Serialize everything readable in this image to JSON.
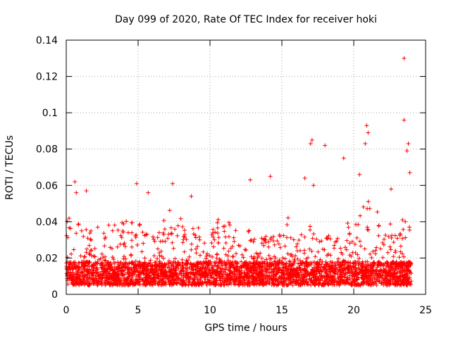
{
  "chart_data": {
    "type": "scatter",
    "title": "Day 099 of 2020, Rate Of TEC Index for receiver hoki",
    "xlabel": "GPS time / hours",
    "ylabel": "ROTI / TECUs",
    "xlim": [
      0,
      25
    ],
    "ylim": [
      0,
      0.14
    ],
    "x_ticks": [
      0,
      5,
      10,
      15,
      20,
      25
    ],
    "x_tick_labels": [
      "0",
      "5",
      "10",
      "15",
      "20",
      "25"
    ],
    "y_ticks": [
      0,
      0.02,
      0.04,
      0.06,
      0.08,
      0.1,
      0.12,
      0.14
    ],
    "y_tick_labels": [
      "0",
      "0.02",
      "0.04",
      "0.06",
      "0.08",
      "0.1",
      "0.12",
      "0.14"
    ],
    "grid": true,
    "marker": "+",
    "color": "#ff0000",
    "series": [
      {
        "name": "ROTI",
        "note": "dense scatter of ~24h observations; typical values 0.005-0.03 with outliers",
        "outliers": [
          [
            0.6,
            0.062
          ],
          [
            0.7,
            0.056
          ],
          [
            1.4,
            0.057
          ],
          [
            4.9,
            0.061
          ],
          [
            5.7,
            0.056
          ],
          [
            7.4,
            0.061
          ],
          [
            8.7,
            0.054
          ],
          [
            12.8,
            0.063
          ],
          [
            14.2,
            0.065
          ],
          [
            16.6,
            0.064
          ],
          [
            17.0,
            0.083
          ],
          [
            17.1,
            0.085
          ],
          [
            18.0,
            0.082
          ],
          [
            19.3,
            0.075
          ],
          [
            20.4,
            0.066
          ],
          [
            20.8,
            0.083
          ],
          [
            20.9,
            0.093
          ],
          [
            21.0,
            0.089
          ],
          [
            22.6,
            0.058
          ],
          [
            23.5,
            0.096
          ],
          [
            23.5,
            0.13
          ],
          [
            23.7,
            0.079
          ],
          [
            23.8,
            0.083
          ],
          [
            23.9,
            0.067
          ],
          [
            17.2,
            0.06
          ]
        ],
        "envelope": [
          [
            0.0,
            0.04
          ],
          [
            0.5,
            0.045
          ],
          [
            1.0,
            0.04
          ],
          [
            1.5,
            0.035
          ],
          [
            2.0,
            0.038
          ],
          [
            2.5,
            0.042
          ],
          [
            3.0,
            0.045
          ],
          [
            3.5,
            0.04
          ],
          [
            4.0,
            0.04
          ],
          [
            4.5,
            0.044
          ],
          [
            5.0,
            0.04
          ],
          [
            5.5,
            0.038
          ],
          [
            6.0,
            0.036
          ],
          [
            6.5,
            0.04
          ],
          [
            7.0,
            0.046
          ],
          [
            7.5,
            0.048
          ],
          [
            8.0,
            0.042
          ],
          [
            8.5,
            0.038
          ],
          [
            9.0,
            0.036
          ],
          [
            9.5,
            0.038
          ],
          [
            10.0,
            0.032
          ],
          [
            10.5,
            0.044
          ],
          [
            11.0,
            0.042
          ],
          [
            11.5,
            0.04
          ],
          [
            12.0,
            0.036
          ],
          [
            12.5,
            0.04
          ],
          [
            13.0,
            0.034
          ],
          [
            13.5,
            0.03
          ],
          [
            14.0,
            0.036
          ],
          [
            14.5,
            0.034
          ],
          [
            15.0,
            0.04
          ],
          [
            15.5,
            0.044
          ],
          [
            16.0,
            0.036
          ],
          [
            16.5,
            0.034
          ],
          [
            17.0,
            0.038
          ],
          [
            17.5,
            0.03
          ],
          [
            18.0,
            0.032
          ],
          [
            18.5,
            0.034
          ],
          [
            19.0,
            0.036
          ],
          [
            19.5,
            0.04
          ],
          [
            20.0,
            0.046
          ],
          [
            20.5,
            0.05
          ],
          [
            21.0,
            0.052
          ],
          [
            21.5,
            0.046
          ],
          [
            22.0,
            0.044
          ],
          [
            22.5,
            0.04
          ],
          [
            23.0,
            0.036
          ],
          [
            23.5,
            0.048
          ],
          [
            24.0,
            0.042
          ]
        ],
        "x_range": [
          0,
          24
        ],
        "baseline_range": [
          0.005,
          0.018
        ]
      }
    ]
  }
}
